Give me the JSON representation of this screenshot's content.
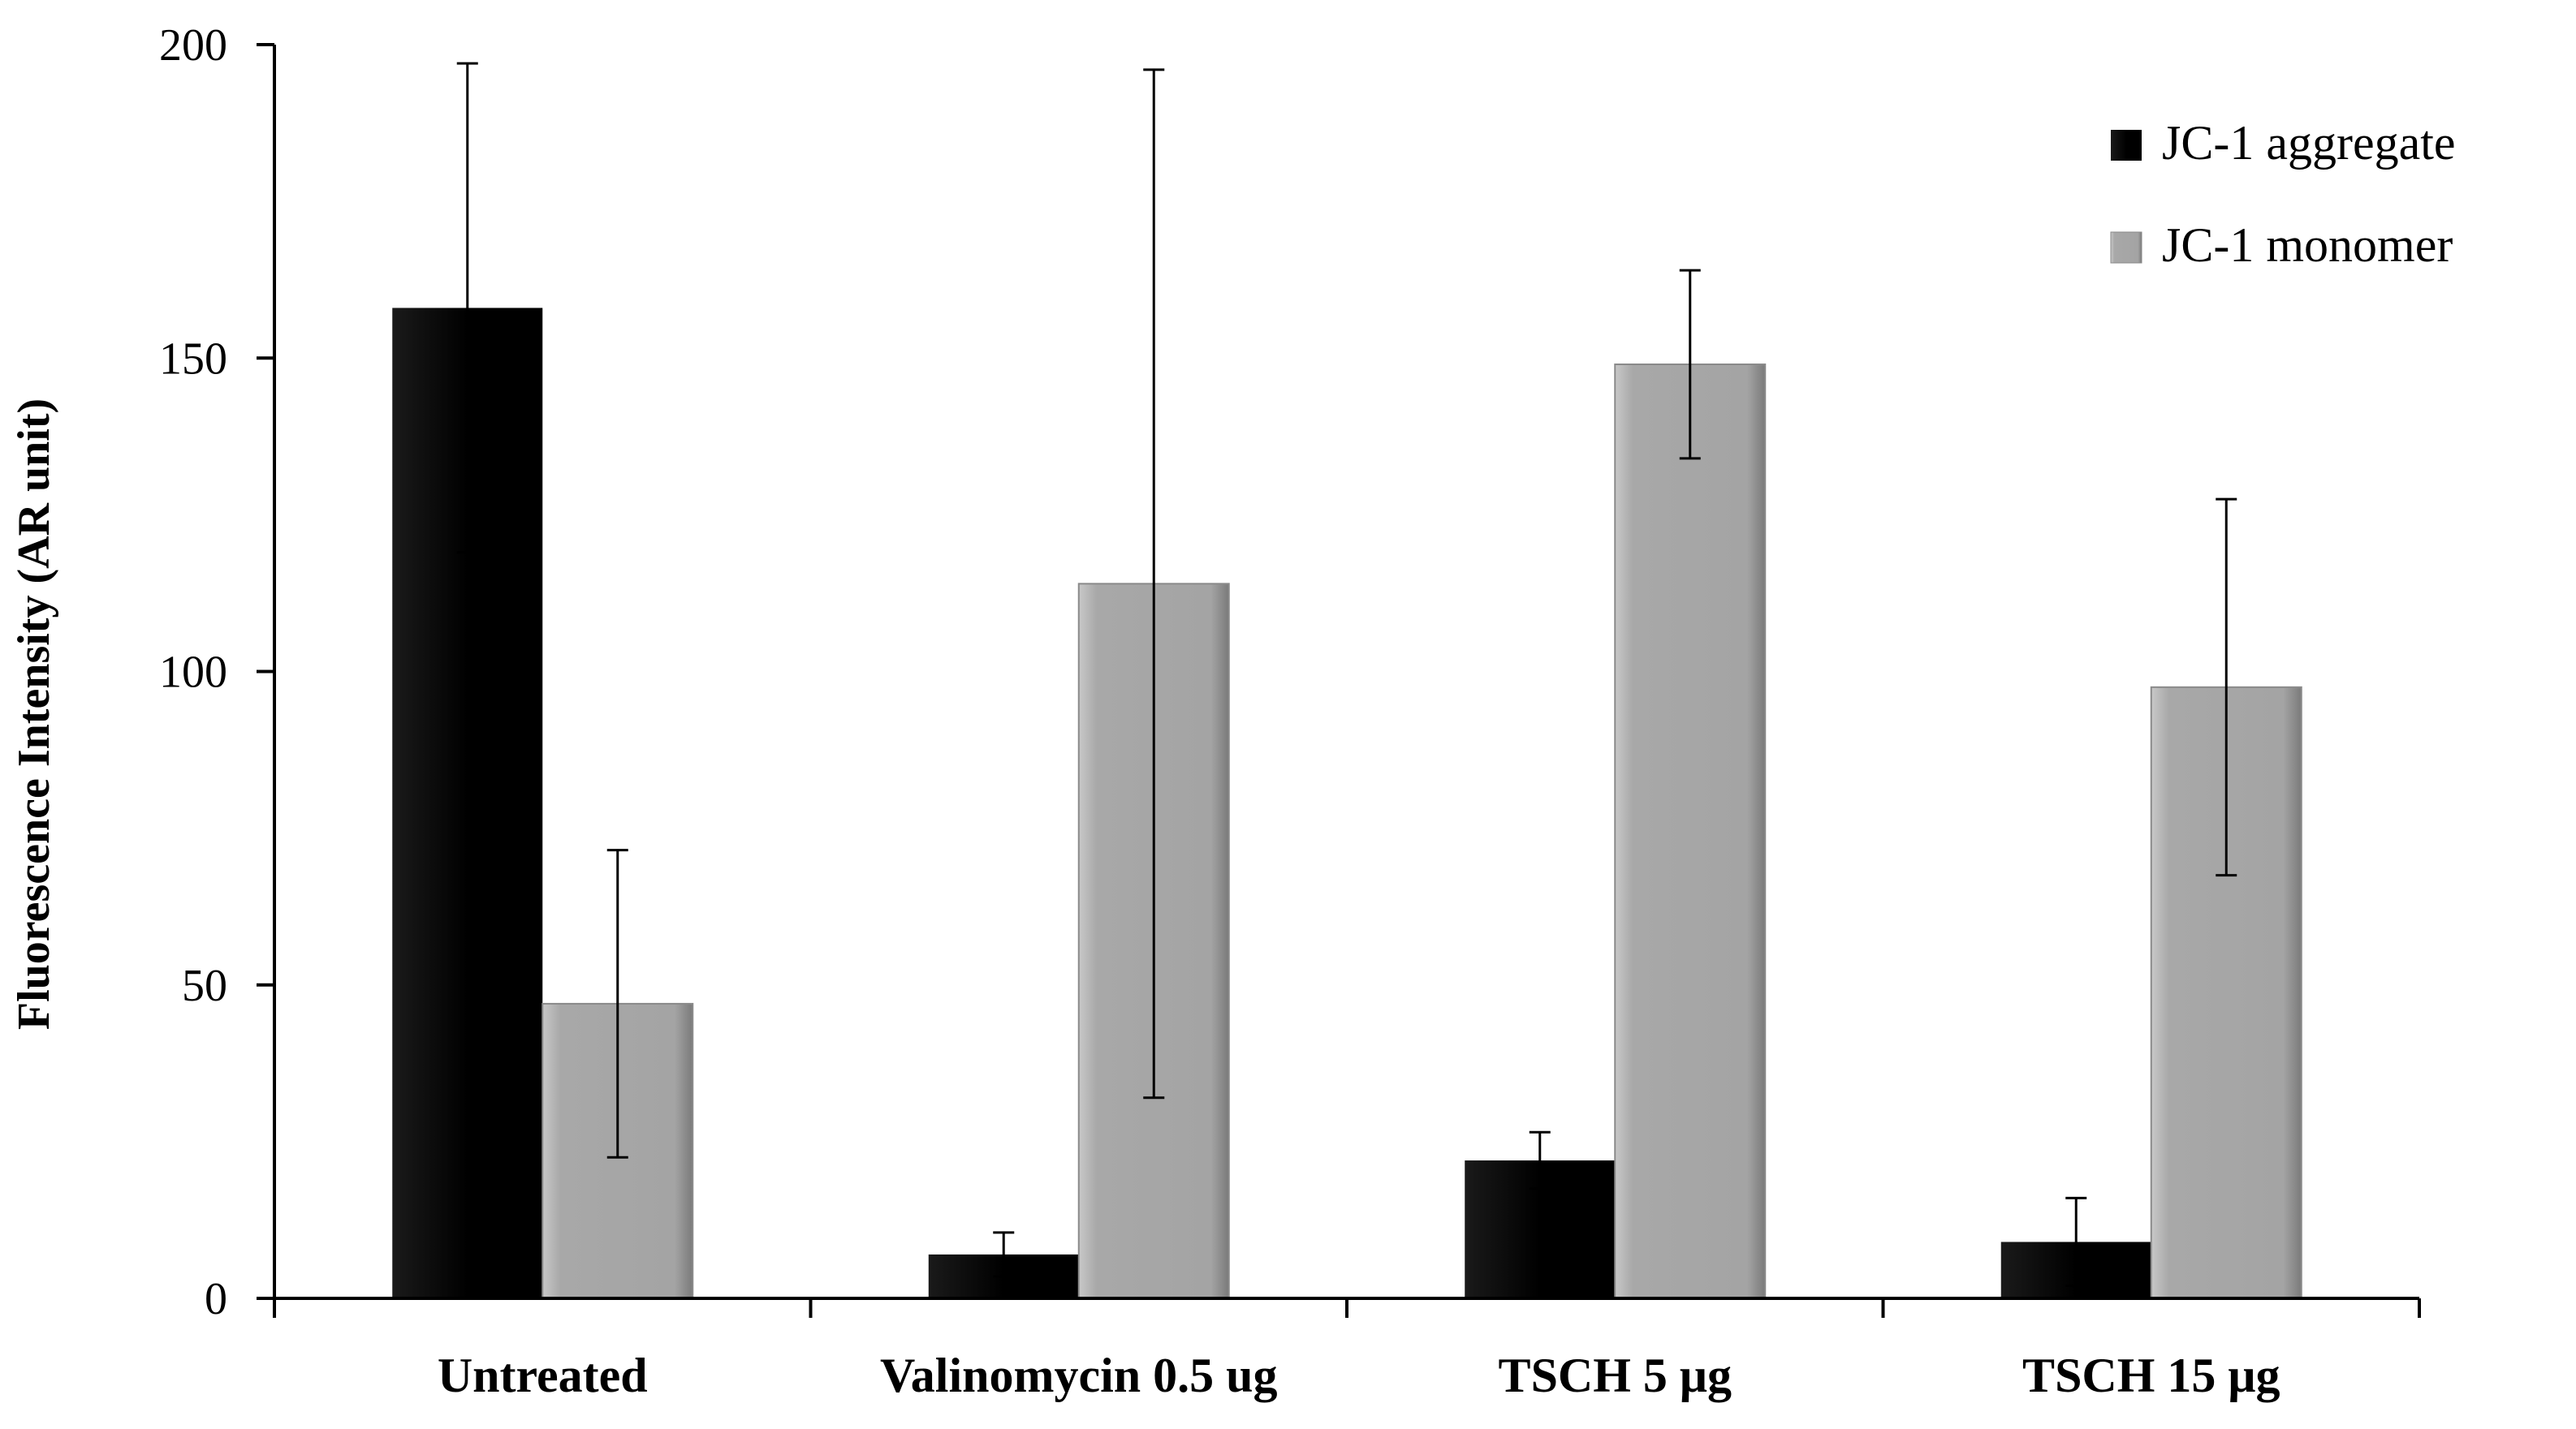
{
  "chart_data": {
    "type": "bar",
    "title": "",
    "xlabel": "",
    "ylabel": "Fluorescence Intensity (AR unit)",
    "ylim": [
      0,
      200
    ],
    "yticks": [
      0,
      50,
      100,
      150,
      200
    ],
    "categories": [
      "Untreated",
      "Valinomycin 0.5 ug",
      "TSCH  5 μg",
      "TSCH  15 μg"
    ],
    "series": [
      {
        "name": "JC-1 aggregate",
        "color": "#000000",
        "values": [
          158,
          7,
          22,
          9
        ],
        "errors": [
          39,
          3.5,
          4.5,
          7
        ]
      },
      {
        "name": "JC-1 monomer",
        "color": "#a6a6a6",
        "values": [
          47,
          114,
          149,
          97.5
        ],
        "errors": [
          24.5,
          82,
          15,
          30
        ]
      }
    ],
    "legend_position": "top-right",
    "grid": false
  }
}
